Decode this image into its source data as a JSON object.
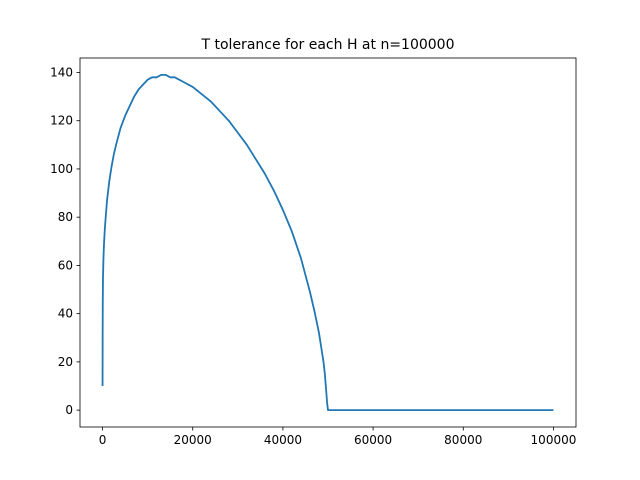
{
  "chart_data": {
    "type": "line",
    "title": "T tolerance for each H at n=100000",
    "xlabel": "",
    "ylabel": "",
    "xlim": [
      -5000,
      105000
    ],
    "ylim": [
      -7,
      146
    ],
    "grid": false,
    "x_ticks": [
      0,
      20000,
      40000,
      60000,
      80000,
      100000
    ],
    "x_tick_labels": [
      "0",
      "20000",
      "40000",
      "60000",
      "80000",
      "100000"
    ],
    "y_ticks": [
      0,
      20,
      40,
      60,
      80,
      100,
      120,
      140
    ],
    "y_tick_labels": [
      "0",
      "20",
      "40",
      "60",
      "80",
      "100",
      "120",
      "140"
    ],
    "series": [
      {
        "color": "#1f77b4",
        "x": [
          0,
          20,
          50,
          100,
          200,
          300,
          500,
          700,
          1000,
          1500,
          2000,
          2500,
          3000,
          4000,
          5000,
          6000,
          7000,
          8000,
          9000,
          10000,
          11000,
          12000,
          13000,
          14000,
          15000,
          16000,
          17000,
          18000,
          20000,
          22000,
          24000,
          26000,
          28000,
          30000,
          32000,
          34000,
          36000,
          38000,
          40000,
          42000,
          44000,
          45000,
          46000,
          47000,
          48000,
          48500,
          49000,
          49300,
          49600,
          49800,
          50000,
          50100,
          60000,
          70000,
          80000,
          90000,
          100000
        ],
        "y": [
          10,
          30,
          45,
          55,
          63,
          68,
          75,
          80,
          87,
          95,
          101,
          106,
          110,
          117,
          122,
          126,
          130,
          133,
          135,
          137,
          138,
          138,
          139,
          139,
          138,
          138,
          137,
          136,
          134,
          131,
          128,
          124,
          120,
          115,
          110,
          104,
          98,
          91,
          83,
          74,
          63,
          56,
          49,
          41,
          32,
          26,
          20,
          15,
          8,
          3,
          0,
          0,
          0,
          0,
          0,
          0,
          0
        ]
      }
    ]
  }
}
